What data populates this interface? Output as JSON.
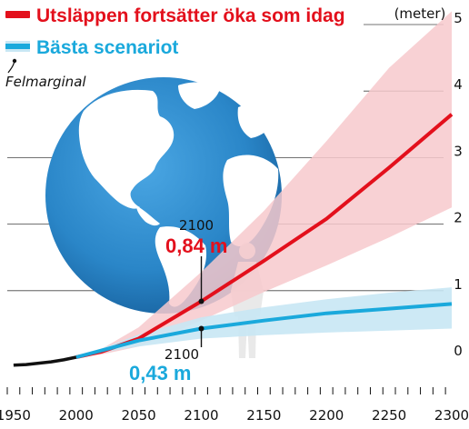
{
  "colors": {
    "high": "#e3101c",
    "high_band": "#f7c9cc",
    "best": "#1aa9dc",
    "best_band": "#c8e7f4",
    "history": "#111111",
    "ocean": "#2e8ed0",
    "land": "#ffffff"
  },
  "legend": {
    "high_label": "Utsläppen fortsätter öka som idag",
    "best_label": "Bästa scenariot",
    "margin_label": "Felmarginal"
  },
  "y_unit": "(meter)",
  "annotations": {
    "high_year": "2100",
    "high_value": "0,84 m",
    "best_year": "2100",
    "best_value": "0,43 m"
  },
  "chart_data": {
    "type": "line",
    "title": "",
    "xlabel": "",
    "ylabel": "(meter)",
    "xlim": [
      1945,
      2300
    ],
    "ylim": [
      0,
      5
    ],
    "x_ticks": [
      "1950",
      "2000",
      "2050",
      "2100",
      "2150",
      "2200",
      "2250",
      "2300"
    ],
    "y_ticks": [
      "0",
      "1",
      "2",
      "3",
      "4",
      "5"
    ],
    "grid": true,
    "legend_position": "top-left",
    "series": [
      {
        "name": "Utsläppen fortsätter öka som idag",
        "x": [
          2000,
          2020,
          2050,
          2100,
          2150,
          2200,
          2250,
          2300
        ],
        "values": [
          0.0,
          0.08,
          0.28,
          0.84,
          1.45,
          2.08,
          2.85,
          3.65
        ],
        "band_low": [
          0.0,
          0.04,
          0.16,
          0.55,
          0.98,
          1.38,
          1.8,
          2.25
        ],
        "band_high": [
          0.0,
          0.12,
          0.45,
          1.28,
          2.2,
          3.25,
          4.35,
          5.2
        ]
      },
      {
        "name": "Bästa scenariot",
        "x": [
          2000,
          2020,
          2050,
          2100,
          2150,
          2200,
          2250,
          2300
        ],
        "values": [
          0.0,
          0.1,
          0.25,
          0.43,
          0.55,
          0.66,
          0.73,
          0.8
        ],
        "band_low": [
          0.0,
          0.07,
          0.16,
          0.28,
          0.33,
          0.37,
          0.4,
          0.43
        ],
        "band_high": [
          0.0,
          0.13,
          0.34,
          0.6,
          0.75,
          0.87,
          0.97,
          1.05
        ]
      },
      {
        "name": "history",
        "x": [
          1950,
          1960,
          1970,
          1980,
          1990,
          2000
        ],
        "values": [
          -0.12,
          -0.11,
          -0.09,
          -0.07,
          -0.04,
          0.0
        ]
      }
    ]
  }
}
